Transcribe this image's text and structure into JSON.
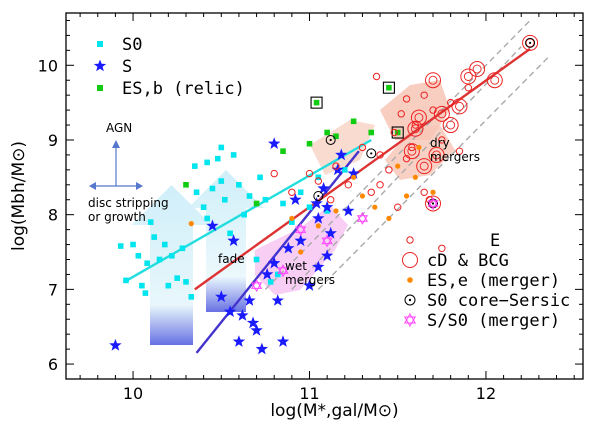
{
  "chart_data": {
    "type": "scatter",
    "xlabel": "log(M*,gal/M⊙)",
    "ylabel": "log(Mbh/M⊙)",
    "xlim": [
      9.62,
      12.55
    ],
    "ylim": [
      5.8,
      10.7
    ],
    "x_ticks": [
      10,
      11,
      12
    ],
    "y_ticks": [
      6,
      7,
      8,
      9,
      10
    ],
    "grid": false,
    "colors": {
      "s0": "#00e5ee",
      "s": "#1a1aff",
      "esb": "#11cc11",
      "e": "#ee2222",
      "ese": "#ff8800",
      "s0cs": "#000000",
      "merger": "#ff44ff",
      "line_s0": "#22dddd",
      "line_s": "#4433cc",
      "line_e": "#dd3333",
      "line_dash": "#aaaaaa"
    },
    "legend_top_left": [
      {
        "marker": "square",
        "color": "#00e5ee",
        "label": "S0"
      },
      {
        "marker": "star",
        "color": "#1a1aff",
        "label": "S"
      },
      {
        "marker": "square",
        "color": "#11cc11",
        "label": "ES,b (relic)"
      }
    ],
    "legend_bottom_right": [
      {
        "marker": "circle-small",
        "color": "#ee2222",
        "label": "E"
      },
      {
        "marker": "circle-large",
        "color": "#ee2222",
        "label": "cD & BCG"
      },
      {
        "marker": "dot",
        "color": "#ff8800",
        "label": "ES,e (merger)"
      },
      {
        "marker": "circle-dot",
        "color": "#000000",
        "label": "S0 core−Sersic"
      },
      {
        "marker": "star-open",
        "color": "#ff44ff",
        "label": "S/S0 (merger)"
      }
    ],
    "annotations": {
      "agn": "AGN",
      "disc": "disc stripping\nor growth",
      "fade": "fade",
      "wet": "wet\nmergers",
      "dry": "dry\nmergers"
    },
    "fit_lines": [
      {
        "name": "S0",
        "color": "#22dddd",
        "x": [
          9.95,
          11.35
        ],
        "y": [
          7.1,
          9.0
        ]
      },
      {
        "name": "S",
        "color": "#4433cc",
        "x": [
          10.36,
          11.28
        ],
        "y": [
          6.15,
          8.85
        ]
      },
      {
        "name": "E",
        "color": "#dd3333",
        "x": [
          10.35,
          12.25
        ],
        "y": [
          7.0,
          10.22
        ]
      }
    ],
    "dashed_lines": [
      {
        "x": [
          10.9,
          12.2
        ],
        "y": [
          7.0,
          10.25
        ]
      },
      {
        "x": [
          10.75,
          12.25
        ],
        "y": [
          7.0,
          10.6
        ]
      },
      {
        "x": [
          11.05,
          12.35
        ],
        "y": [
          7.0,
          10.1
        ]
      }
    ],
    "series": [
      {
        "name": "S0",
        "marker": "square",
        "points": [
          [
            9.93,
            7.58
          ],
          [
            9.96,
            7.12
          ],
          [
            10.0,
            7.6
          ],
          [
            10.03,
            7.45
          ],
          [
            10.05,
            7.05
          ],
          [
            10.07,
            6.95
          ],
          [
            10.08,
            7.35
          ],
          [
            10.1,
            7.9
          ],
          [
            10.12,
            7.7
          ],
          [
            10.15,
            7.4
          ],
          [
            10.18,
            7.6
          ],
          [
            10.2,
            7.05
          ],
          [
            10.22,
            7.45
          ],
          [
            10.25,
            7.15
          ],
          [
            10.28,
            7.55
          ],
          [
            10.3,
            7.1
          ],
          [
            10.33,
            6.9
          ],
          [
            10.36,
            8.3
          ],
          [
            10.4,
            8.1
          ],
          [
            10.42,
            7.95
          ],
          [
            10.45,
            8.35
          ],
          [
            10.48,
            8.75
          ],
          [
            10.5,
            8.45
          ],
          [
            10.52,
            8.2
          ],
          [
            10.55,
            7.75
          ],
          [
            10.57,
            8.8
          ],
          [
            10.6,
            8.4
          ],
          [
            10.63,
            8.0
          ],
          [
            10.66,
            8.25
          ],
          [
            10.7,
            7.4
          ],
          [
            10.72,
            8.5
          ],
          [
            10.75,
            8.2
          ],
          [
            10.78,
            7.1
          ],
          [
            10.82,
            7.2
          ],
          [
            10.85,
            8.15
          ],
          [
            10.9,
            7.9
          ],
          [
            10.95,
            8.3
          ],
          [
            11.0,
            8.1
          ],
          [
            11.05,
            8.5
          ],
          [
            11.1,
            8.05
          ],
          [
            11.2,
            8.6
          ],
          [
            10.35,
            8.65
          ],
          [
            10.42,
            8.7
          ],
          [
            10.5,
            8.9
          ]
        ]
      },
      {
        "name": "S",
        "marker": "star",
        "points": [
          [
            9.9,
            6.25
          ],
          [
            10.45,
            7.85
          ],
          [
            10.5,
            6.9
          ],
          [
            10.55,
            6.7
          ],
          [
            10.57,
            7.65
          ],
          [
            10.62,
            6.65
          ],
          [
            10.66,
            6.85
          ],
          [
            10.7,
            6.45
          ],
          [
            10.73,
            6.2
          ],
          [
            10.76,
            7.2
          ],
          [
            10.8,
            7.35
          ],
          [
            10.82,
            6.85
          ],
          [
            10.85,
            6.3
          ],
          [
            10.8,
            8.95
          ],
          [
            10.88,
            7.55
          ],
          [
            10.92,
            8.2
          ],
          [
            10.95,
            7.65
          ],
          [
            11.0,
            7.05
          ],
          [
            11.04,
            8.15
          ],
          [
            11.05,
            7.95
          ],
          [
            11.08,
            8.35
          ],
          [
            11.1,
            8.1
          ],
          [
            11.12,
            7.75
          ],
          [
            11.16,
            8.6
          ],
          [
            11.22,
            8.05
          ],
          [
            11.25,
            8.55
          ],
          [
            11.18,
            8.8
          ],
          [
            11.1,
            7.45
          ],
          [
            11.05,
            7.3
          ],
          [
            10.68,
            6.55
          ],
          [
            10.6,
            6.3
          ]
        ]
      },
      {
        "name": "ES,b (relic)",
        "marker": "square",
        "points": [
          [
            10.3,
            8.4
          ],
          [
            10.7,
            8.15
          ],
          [
            10.85,
            8.85
          ],
          [
            11.0,
            8.95
          ],
          [
            11.04,
            9.5
          ],
          [
            11.1,
            9.1
          ],
          [
            11.15,
            9.05
          ],
          [
            11.25,
            9.25
          ],
          [
            11.35,
            9.1
          ],
          [
            11.45,
            9.7
          ],
          [
            11.5,
            9.1
          ]
        ]
      },
      {
        "name": "ES,b boxed",
        "marker": "square-boxed",
        "points": [
          [
            11.04,
            9.5
          ],
          [
            11.45,
            9.7
          ],
          [
            11.5,
            9.1
          ]
        ]
      },
      {
        "name": "E",
        "marker": "circle-small",
        "points": [
          [
            10.8,
            8.55
          ],
          [
            10.9,
            8.3
          ],
          [
            11.0,
            8.55
          ],
          [
            11.05,
            8.45
          ],
          [
            11.12,
            8.2
          ],
          [
            11.15,
            8.65
          ],
          [
            11.22,
            8.4
          ],
          [
            11.3,
            8.9
          ],
          [
            11.35,
            8.3
          ],
          [
            11.4,
            8.8
          ],
          [
            11.45,
            8.6
          ],
          [
            11.48,
            9.1
          ],
          [
            11.52,
            9.35
          ],
          [
            11.55,
            9.55
          ],
          [
            11.6,
            9.2
          ],
          [
            11.65,
            9.6
          ],
          [
            11.7,
            9.4
          ],
          [
            11.75,
            9.0
          ],
          [
            11.8,
            9.5
          ],
          [
            11.4,
            8.4
          ],
          [
            11.5,
            8.1
          ],
          [
            11.58,
            8.9
          ],
          [
            11.68,
            8.2
          ],
          [
            11.85,
            8.85
          ],
          [
            11.9,
            9.7
          ],
          [
            11.65,
            8.3
          ],
          [
            11.75,
            7.55
          ],
          [
            11.55,
            8.75
          ],
          [
            11.38,
            9.85
          ]
        ]
      },
      {
        "name": "cD & BCG",
        "marker": "circle-large",
        "points": [
          [
            11.58,
            8.85
          ],
          [
            11.62,
            9.3
          ],
          [
            11.65,
            8.65
          ],
          [
            11.7,
            9.8
          ],
          [
            11.72,
            8.8
          ],
          [
            11.75,
            9.35
          ],
          [
            11.8,
            9.2
          ],
          [
            11.85,
            9.45
          ],
          [
            11.9,
            9.85
          ],
          [
            11.95,
            9.95
          ],
          [
            12.05,
            9.8
          ],
          [
            12.25,
            10.3
          ],
          [
            11.7,
            8.15
          ],
          [
            11.6,
            9.15
          ]
        ]
      },
      {
        "name": "ES,e (merger)",
        "marker": "dot",
        "points": [
          [
            10.33,
            7.88
          ],
          [
            10.9,
            7.95
          ],
          [
            10.95,
            7.5
          ],
          [
            11.05,
            7.85
          ],
          [
            11.15,
            8.05
          ],
          [
            11.3,
            8.25
          ],
          [
            11.37,
            8.1
          ],
          [
            11.45,
            7.95
          ],
          [
            11.55,
            8.25
          ],
          [
            11.6,
            8.5
          ],
          [
            11.62,
            8.9
          ],
          [
            11.7,
            8.3
          ],
          [
            11.25,
            8.5
          ],
          [
            11.5,
            8.65
          ]
        ]
      },
      {
        "name": "S0 core-Sersic",
        "marker": "circle-dot",
        "points": [
          [
            11.12,
            9.0
          ],
          [
            11.35,
            8.82
          ],
          [
            11.05,
            8.25
          ],
          [
            11.7,
            8.15
          ],
          [
            12.25,
            10.3
          ]
        ]
      },
      {
        "name": "S/S0 (merger)",
        "marker": "star-open",
        "points": [
          [
            10.7,
            7.05
          ],
          [
            10.95,
            7.8
          ],
          [
            11.1,
            7.65
          ],
          [
            11.3,
            7.95
          ],
          [
            11.7,
            8.15
          ],
          [
            10.85,
            7.25
          ]
        ]
      }
    ]
  }
}
